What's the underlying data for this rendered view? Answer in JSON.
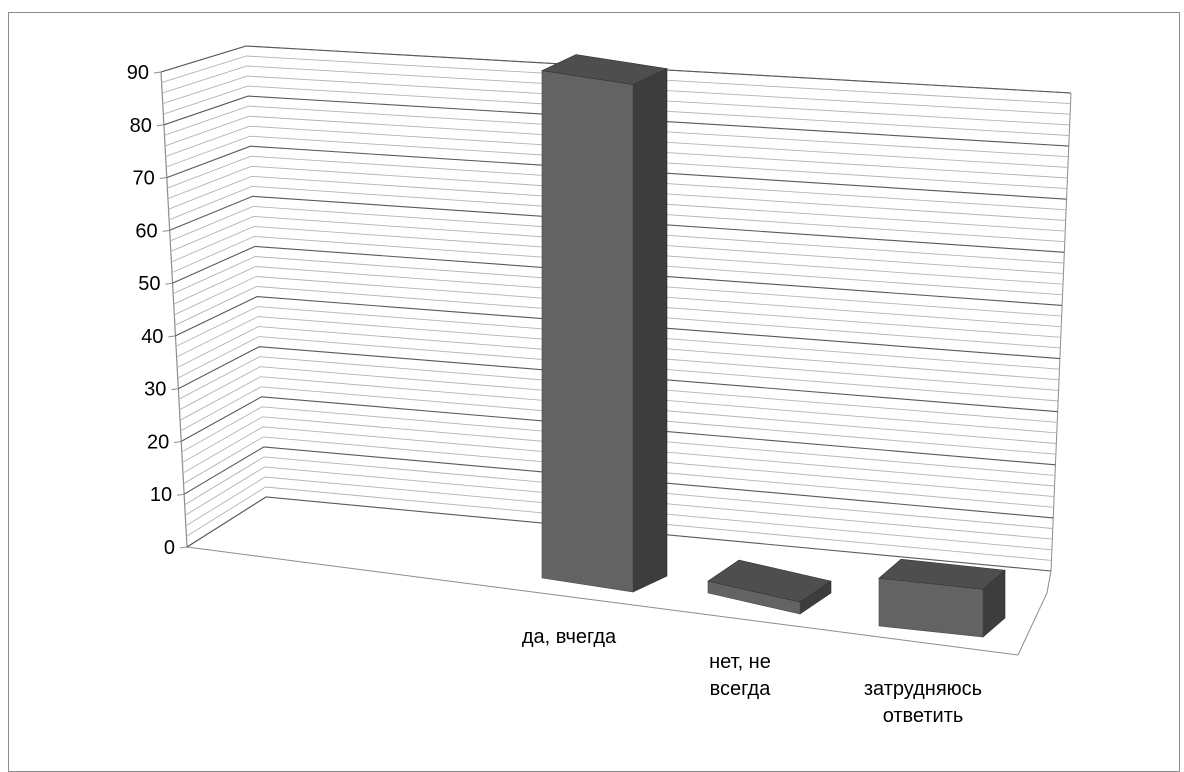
{
  "chart_data": {
    "type": "bar",
    "style": "3d-column",
    "categories": [
      [
        "да, вчегда"
      ],
      [
        "нет, не",
        "всегда"
      ],
      [
        "затрудняюсь",
        "ответить"
      ]
    ],
    "series": [
      {
        "values": [
          85,
          2,
          8
        ]
      }
    ],
    "ylim": [
      0,
      90
    ],
    "yticks": [
      0,
      10,
      20,
      30,
      40,
      50,
      60,
      70,
      80,
      90
    ],
    "grid": true,
    "minor_grid": true,
    "legend": "none",
    "colors": {
      "bar_front": "#636363",
      "bar_side": "#3d3d3d",
      "bar_top": "#4e4e4e",
      "grid_major": "#595959",
      "grid_minor": "#b3b3b3",
      "frame": "#8c8c8c"
    }
  }
}
